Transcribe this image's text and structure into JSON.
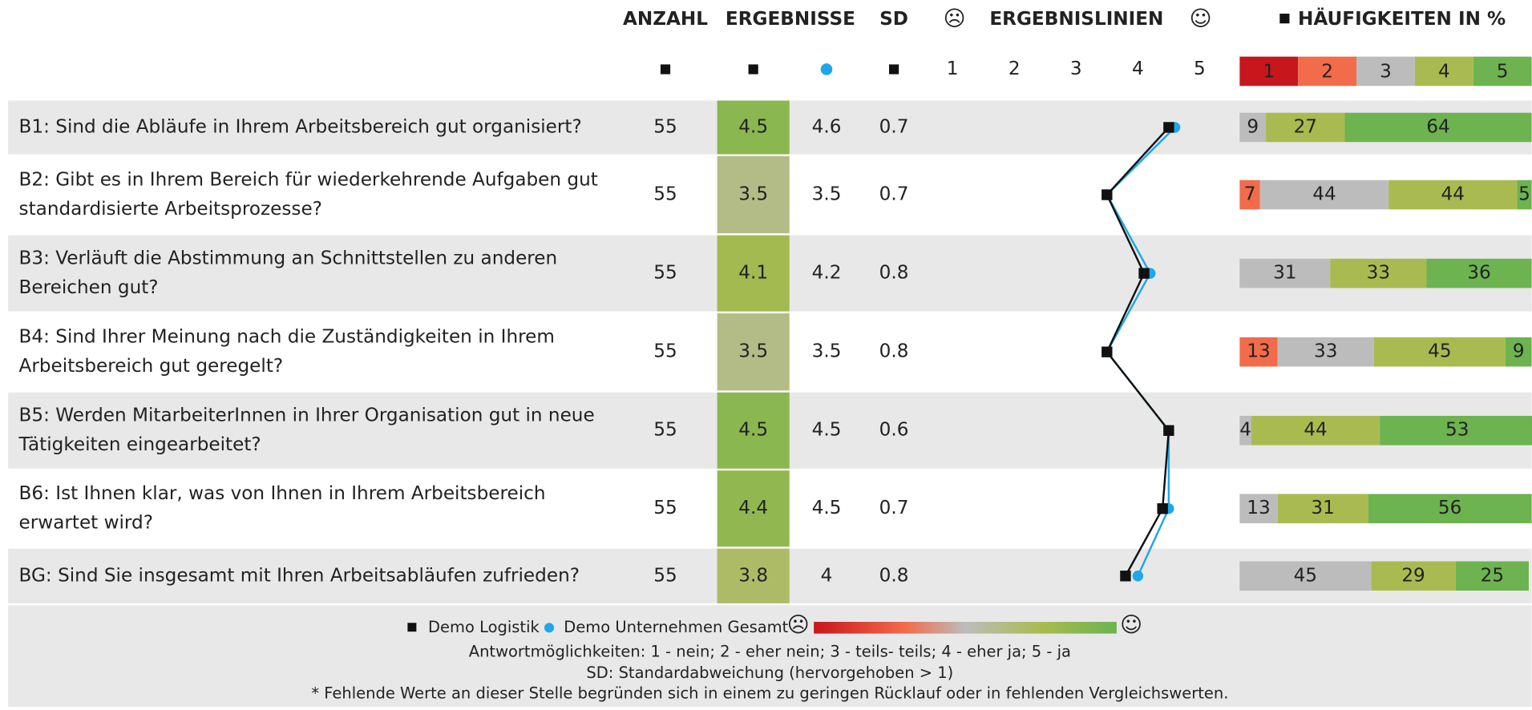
{
  "header": {
    "columns": [
      "ANZAHL",
      "ERGEBNISSE",
      "SD",
      "ERGEBNISLINIEN",
      "HÄUFIGKEITEN IN %"
    ],
    "sad": "☹",
    "happy": "☺",
    "scale": [
      1,
      2,
      3,
      4,
      5
    ],
    "freq_legend": [
      1,
      2,
      3,
      4,
      5
    ]
  },
  "rows": [
    {
      "question": [
        "B1: Sind die Abläufe in Ihrem Arbeitsbereich gut organisiert?"
      ],
      "n": 55,
      "result": 4.5,
      "company": 4.6,
      "sd": 0.7,
      "freq": [
        null,
        null,
        9,
        27,
        64
      ]
    },
    {
      "question": [
        "B2: Gibt es in Ihrem Bereich für wiederkehrende Aufgaben gut",
        "standardisierte Arbeitsprozesse?"
      ],
      "n": 55,
      "result": 3.5,
      "company": 3.5,
      "sd": 0.7,
      "freq": [
        null,
        7,
        44,
        44,
        5
      ]
    },
    {
      "question": [
        "B3: Verläuft die Abstimmung an Schnittstellen zu anderen",
        "Bereichen gut?"
      ],
      "n": 55,
      "result": 4.1,
      "company": 4.2,
      "sd": 0.8,
      "freq": [
        null,
        null,
        31,
        33,
        36
      ]
    },
    {
      "question": [
        "B4: Sind Ihrer Meinung nach die Zuständigkeiten in Ihrem",
        "Arbeitsbereich gut geregelt?"
      ],
      "n": 55,
      "result": 3.5,
      "company": 3.5,
      "sd": 0.8,
      "freq": [
        null,
        13,
        33,
        45,
        9
      ]
    },
    {
      "question": [
        "B5: Werden MitarbeiterInnen in Ihrer Organisation gut in neue",
        "Tätigkeiten eingearbeitet?"
      ],
      "n": 55,
      "result": 4.5,
      "company": 4.5,
      "sd": 0.6,
      "freq": [
        null,
        null,
        4,
        44,
        53
      ]
    },
    {
      "question": [
        "B6: Ist Ihnen klar, was von Ihnen in Ihrem Arbeitsbereich",
        "erwartet wird?"
      ],
      "n": 55,
      "result": 4.4,
      "company": 4.5,
      "sd": 0.7,
      "freq": [
        null,
        null,
        13,
        31,
        56
      ]
    },
    {
      "question": [
        "BG: Sind Sie insgesamt mit Ihren Arbeitsabläufen zufrieden?"
      ],
      "n": 55,
      "result": 3.8,
      "company": 4.0,
      "sd": 0.8,
      "freq": [
        null,
        null,
        45,
        29,
        25
      ]
    }
  ],
  "legend": {
    "series": [
      {
        "name": "Demo Logistik",
        "color": "#111111"
      },
      {
        "name": "Demo Unternehmen Gesamt",
        "color": "#1ea7e8"
      }
    ],
    "freq_colors": [
      "#c8161d",
      "#f26b4a",
      "#bcbcbc",
      "#a9bb50",
      "#6db350"
    ],
    "notes": [
      "Antwortmöglichkeiten: 1 - nein; 2 - eher nein; 3 - teils- teils; 4 - eher ja; 5 - ja",
      "SD: Standardabweichung (hervorgehoben > 1)",
      "* Fehlende Werte an dieser Stelle begründen sich in einem zu geringen Rücklauf oder in fehlenden Vergleichswerten."
    ]
  }
}
